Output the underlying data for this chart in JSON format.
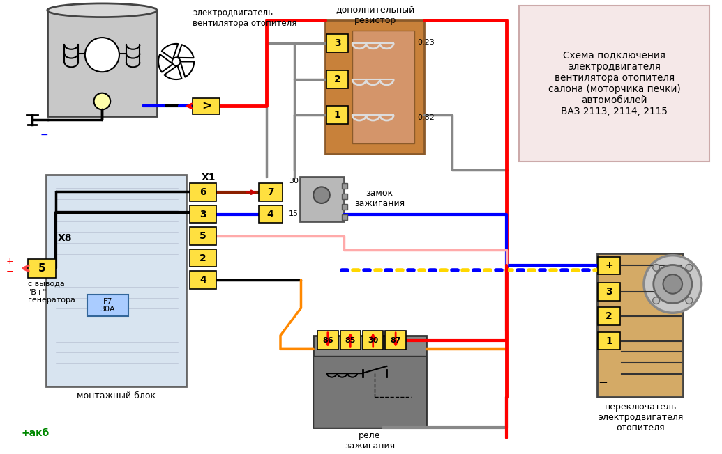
{
  "bg_color": "#ffffff",
  "title_box_text": "Схема подключения\nэлектродвигателя\nвентилятора отопителя\nсалона (моторчика печки)\nавтомобилей\nВАЗ 2113, 2114, 2115",
  "label_motor": "электродвигатель\nвентилятора отопителя",
  "label_resistor": "дополнительный\nрезистор",
  "label_ignition": "замок\nзажигания",
  "label_relay": "реле\nзажигания",
  "label_switch": "переключатель\nэлектродвигателя\nотопителя",
  "label_block": "монтажный блок",
  "label_x8": "X8",
  "label_x1": "X1",
  "label_f7": "F7\n30А",
  "label_plus_akb": "+акб",
  "label_generator": "с вывода\n\"В+\"\nгенератора",
  "label_30": "30",
  "label_15": "15",
  "label_023": "0.23",
  "label_082": "0.82",
  "label_minus": "−"
}
